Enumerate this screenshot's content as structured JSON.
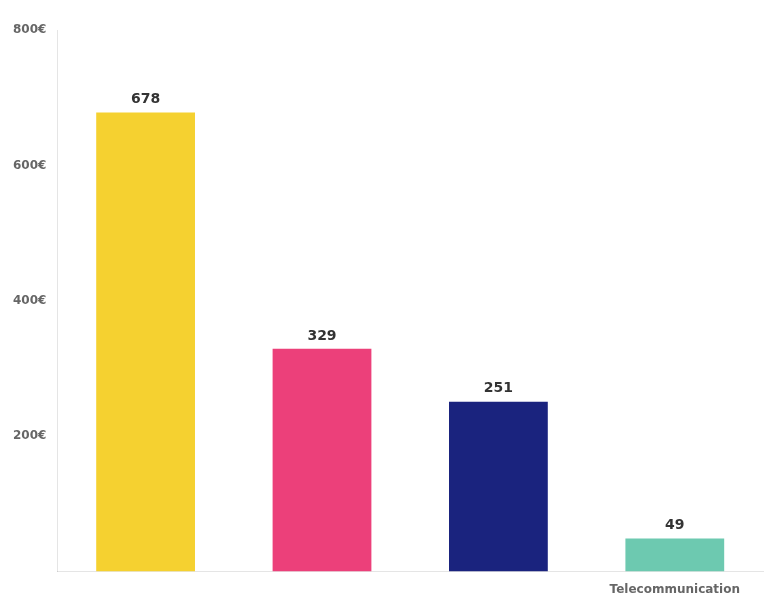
{
  "chart_data": {
    "type": "bar",
    "categories": [
      null,
      null,
      null,
      "Telecommunication"
    ],
    "values": [
      678,
      329,
      251,
      49
    ],
    "colors": [
      "#F5D130",
      "#EC407A",
      "#1A237E",
      "#6DC9B0"
    ],
    "ylim": [
      0,
      800
    ],
    "yticks": [
      {
        "value": 200,
        "label": "200€"
      },
      {
        "value": 400,
        "label": "400€"
      },
      {
        "value": 600,
        "label": "600€"
      },
      {
        "value": 800,
        "label": "800€"
      }
    ],
    "data_labels": true,
    "grid": false
  }
}
